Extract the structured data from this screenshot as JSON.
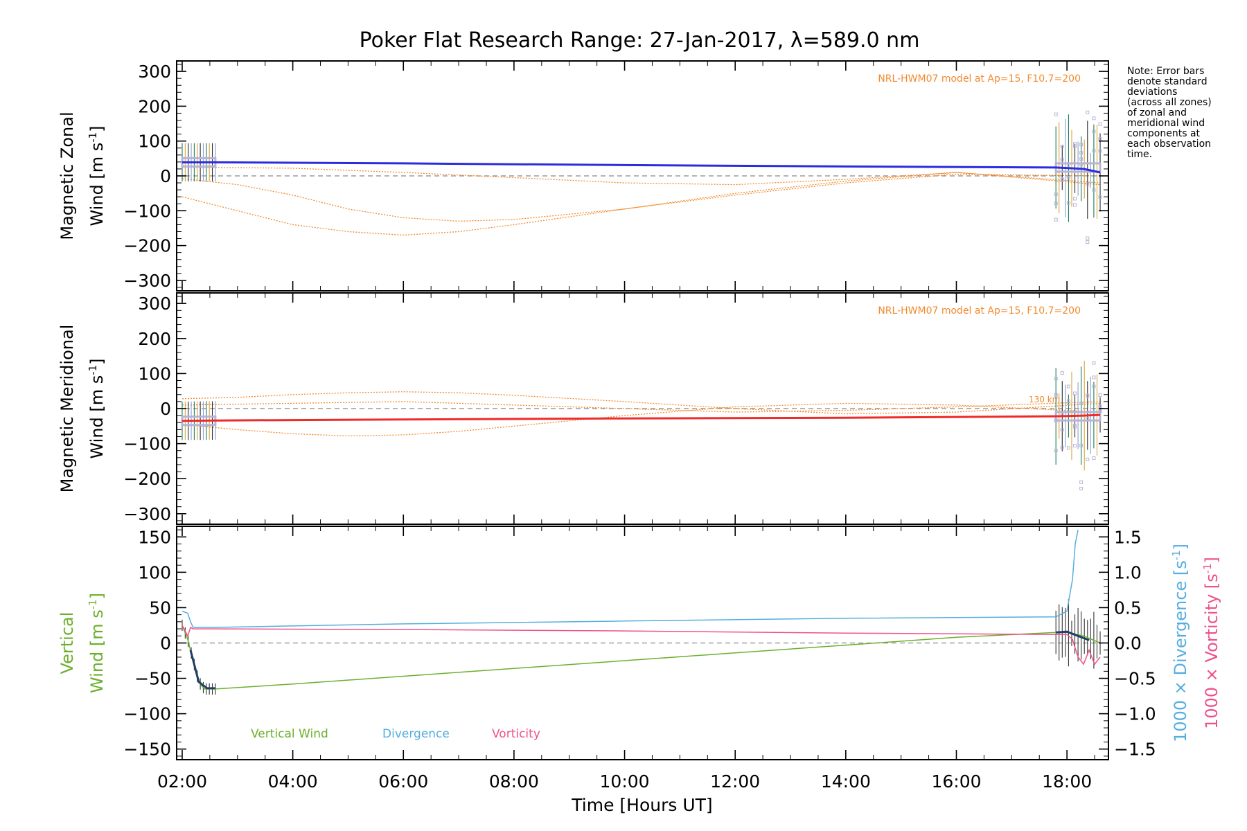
{
  "title": "Poker Flat Research Range: 27-Jan-2017, λ=589.0 nm",
  "note_lines": [
    "Note: Error bars",
    "denote standard",
    "deviations",
    "(across all zones)",
    "of zonal and",
    "meridional wind",
    "components at",
    "each observation",
    "time."
  ],
  "colors": {
    "zonal": "#2b2bdf",
    "meridional": "#ee2a2a",
    "model": "#f28a2e",
    "vertical": "#6bb02c",
    "divergence": "#55aee0",
    "vorticity": "#f0508a",
    "zone_scatter": "#b7b3d8",
    "zero_line": "#888888"
  },
  "chart_data": [
    {
      "type": "line",
      "panel": "zonal",
      "ylabel_line1": "Magnetic Zonal",
      "ylabel_line2": "Wind [m s",
      "ylabel_sup": "-1",
      "ylabel_end": "]",
      "ylim": [
        -330,
        330
      ],
      "yticks": [
        300,
        200,
        100,
        0,
        -100,
        -200,
        -300
      ],
      "model_label": "NRL-HWM07 model at Ap=15, F10.7=200",
      "series": [
        {
          "name": "Magnetic Zonal Wind",
          "x": [
            2.0,
            2.6,
            6.0,
            10.0,
            14.0,
            17.8,
            18.3,
            18.6
          ],
          "y": [
            39,
            39,
            36,
            31,
            27,
            24,
            20,
            10
          ]
        }
      ],
      "model_curves": [
        {
          "x": [
            2.0,
            3.0,
            4.0,
            5.0,
            6.0,
            7.0,
            8.0,
            10.0,
            12.0,
            14.0,
            16.0,
            18.6
          ],
          "y": [
            -8,
            -25,
            -55,
            -95,
            -120,
            -130,
            -125,
            -95,
            -55,
            -20,
            5,
            0
          ]
        },
        {
          "x": [
            2.0,
            3.0,
            4.0,
            5.0,
            6.0,
            7.0,
            8.0,
            10.0,
            12.0,
            14.0,
            16.0,
            18.6
          ],
          "y": [
            -60,
            -100,
            -140,
            -160,
            -170,
            -160,
            -140,
            -95,
            -50,
            -15,
            10,
            -20
          ]
        },
        {
          "x": [
            2.0,
            4.0,
            6.0,
            8.0,
            10.0,
            12.0,
            14.0,
            16.0,
            18.6
          ],
          "y": [
            25,
            22,
            10,
            -5,
            -20,
            -25,
            -10,
            10,
            -25
          ]
        }
      ],
      "obs_windows": [
        [
          2.0,
          2.6
        ],
        [
          17.8,
          18.6
        ]
      ]
    },
    {
      "type": "line",
      "panel": "meridional",
      "ylabel_line1": "Magnetic Meridional",
      "ylabel_line2": "Wind [m s",
      "ylabel_sup": "-1",
      "ylabel_end": "]",
      "ylim": [
        -330,
        330
      ],
      "yticks": [
        300,
        200,
        100,
        0,
        -100,
        -200,
        -300
      ],
      "model_label": "NRL-HWM07 model at Ap=15, F10.7=200",
      "altitude_label": "130 km",
      "series": [
        {
          "name": "Magnetic Meridional Wind",
          "x": [
            2.0,
            2.6,
            6.0,
            10.0,
            14.0,
            17.8,
            18.3,
            18.6
          ],
          "y": [
            -35,
            -34,
            -31,
            -28,
            -26,
            -22,
            -20,
            -18
          ]
        }
      ],
      "model_curves": [
        {
          "x": [
            2.0,
            3.0,
            4.0,
            5.0,
            6.0,
            7.0,
            8.0,
            10.0,
            12.0,
            14.0,
            16.0,
            18.6
          ],
          "y": [
            28,
            32,
            40,
            45,
            48,
            45,
            38,
            20,
            0,
            -15,
            -10,
            15
          ]
        },
        {
          "x": [
            2.0,
            3.0,
            4.0,
            5.0,
            6.0,
            7.0,
            8.0,
            10.0,
            12.0,
            14.0,
            16.0,
            18.6
          ],
          "y": [
            -45,
            -60,
            -72,
            -78,
            -75,
            -65,
            -50,
            -20,
            5,
            15,
            10,
            -10
          ]
        },
        {
          "x": [
            2.0,
            4.0,
            6.0,
            8.0,
            10.0,
            12.0,
            14.0,
            16.0,
            18.6
          ],
          "y": [
            10,
            15,
            20,
            10,
            0,
            -10,
            -5,
            5,
            20
          ]
        }
      ],
      "obs_windows": [
        [
          2.0,
          2.6
        ],
        [
          17.8,
          18.6
        ]
      ]
    },
    {
      "type": "line",
      "panel": "vertical",
      "ylabel_line1": "Vertical",
      "ylabel_line2": "Wind [m s",
      "ylabel_sup": "-1",
      "ylabel_end": "]",
      "ylim": [
        -165,
        165
      ],
      "yticks": [
        150,
        100,
        50,
        0,
        -50,
        -100,
        -150
      ],
      "y2lim": [
        -1.65,
        1.65
      ],
      "y2ticks": [
        "1.5",
        "1.0",
        "0.5",
        "0.0",
        "−0.5",
        "−1.0",
        "−1.5"
      ],
      "y2tick_values": [
        1.5,
        1.0,
        0.5,
        0.0,
        -0.5,
        -1.0,
        -1.5
      ],
      "y2label_divergence": "1000 × Divergence [s",
      "y2label_vorticity": "1000 × Vorticity [s",
      "y2label_sup": "-1",
      "y2label_end": "]",
      "legend": [
        "Vertical Wind",
        "Divergence",
        "Vorticity"
      ],
      "series": [
        {
          "name": "Vertical Wind",
          "x": [
            2.0,
            2.1,
            2.2,
            2.3,
            2.4,
            2.5,
            2.6,
            4.0,
            6.0,
            8.0,
            10.0,
            12.0,
            14.0,
            16.0,
            17.8,
            18.0,
            18.3,
            18.6
          ],
          "y": [
            25,
            5,
            -25,
            -55,
            -65,
            -65,
            -65,
            -58,
            -47,
            -36,
            -25,
            -14,
            -3,
            8,
            15,
            15,
            10,
            0
          ]
        },
        {
          "name": "Divergence",
          "x": [
            2.0,
            2.1,
            2.15,
            2.2,
            2.3,
            2.6,
            6.0,
            10.0,
            14.0,
            17.8,
            18.0,
            18.1,
            18.15,
            18.2
          ],
          "y": [
            0.45,
            0.42,
            0.3,
            0.22,
            0.22,
            0.22,
            0.27,
            0.31,
            0.35,
            0.37,
            0.45,
            0.9,
            1.4,
            1.6
          ]
        },
        {
          "name": "Vorticity",
          "x": [
            2.0,
            2.1,
            2.15,
            2.2,
            2.3,
            2.6,
            6.0,
            10.0,
            14.0,
            17.8,
            18.0,
            18.1,
            18.2,
            18.3,
            18.4,
            18.5,
            18.6
          ],
          "y": [
            0.25,
            0.1,
            0.22,
            0.2,
            0.2,
            0.2,
            0.19,
            0.17,
            0.14,
            0.12,
            0.12,
            0.05,
            -0.2,
            -0.3,
            -0.1,
            -0.3,
            -0.2
          ]
        }
      ],
      "obs_windows": [
        [
          2.0,
          2.6
        ],
        [
          17.8,
          18.6
        ]
      ]
    }
  ],
  "x_axis": {
    "label": "Time [Hours UT]",
    "xlim": [
      1.9,
      18.75
    ],
    "ticks": [
      2,
      4,
      6,
      8,
      10,
      12,
      14,
      16,
      18
    ],
    "tick_labels": [
      "02:00",
      "04:00",
      "06:00",
      "08:00",
      "10:00",
      "12:00",
      "14:00",
      "16:00",
      "18:00"
    ]
  }
}
